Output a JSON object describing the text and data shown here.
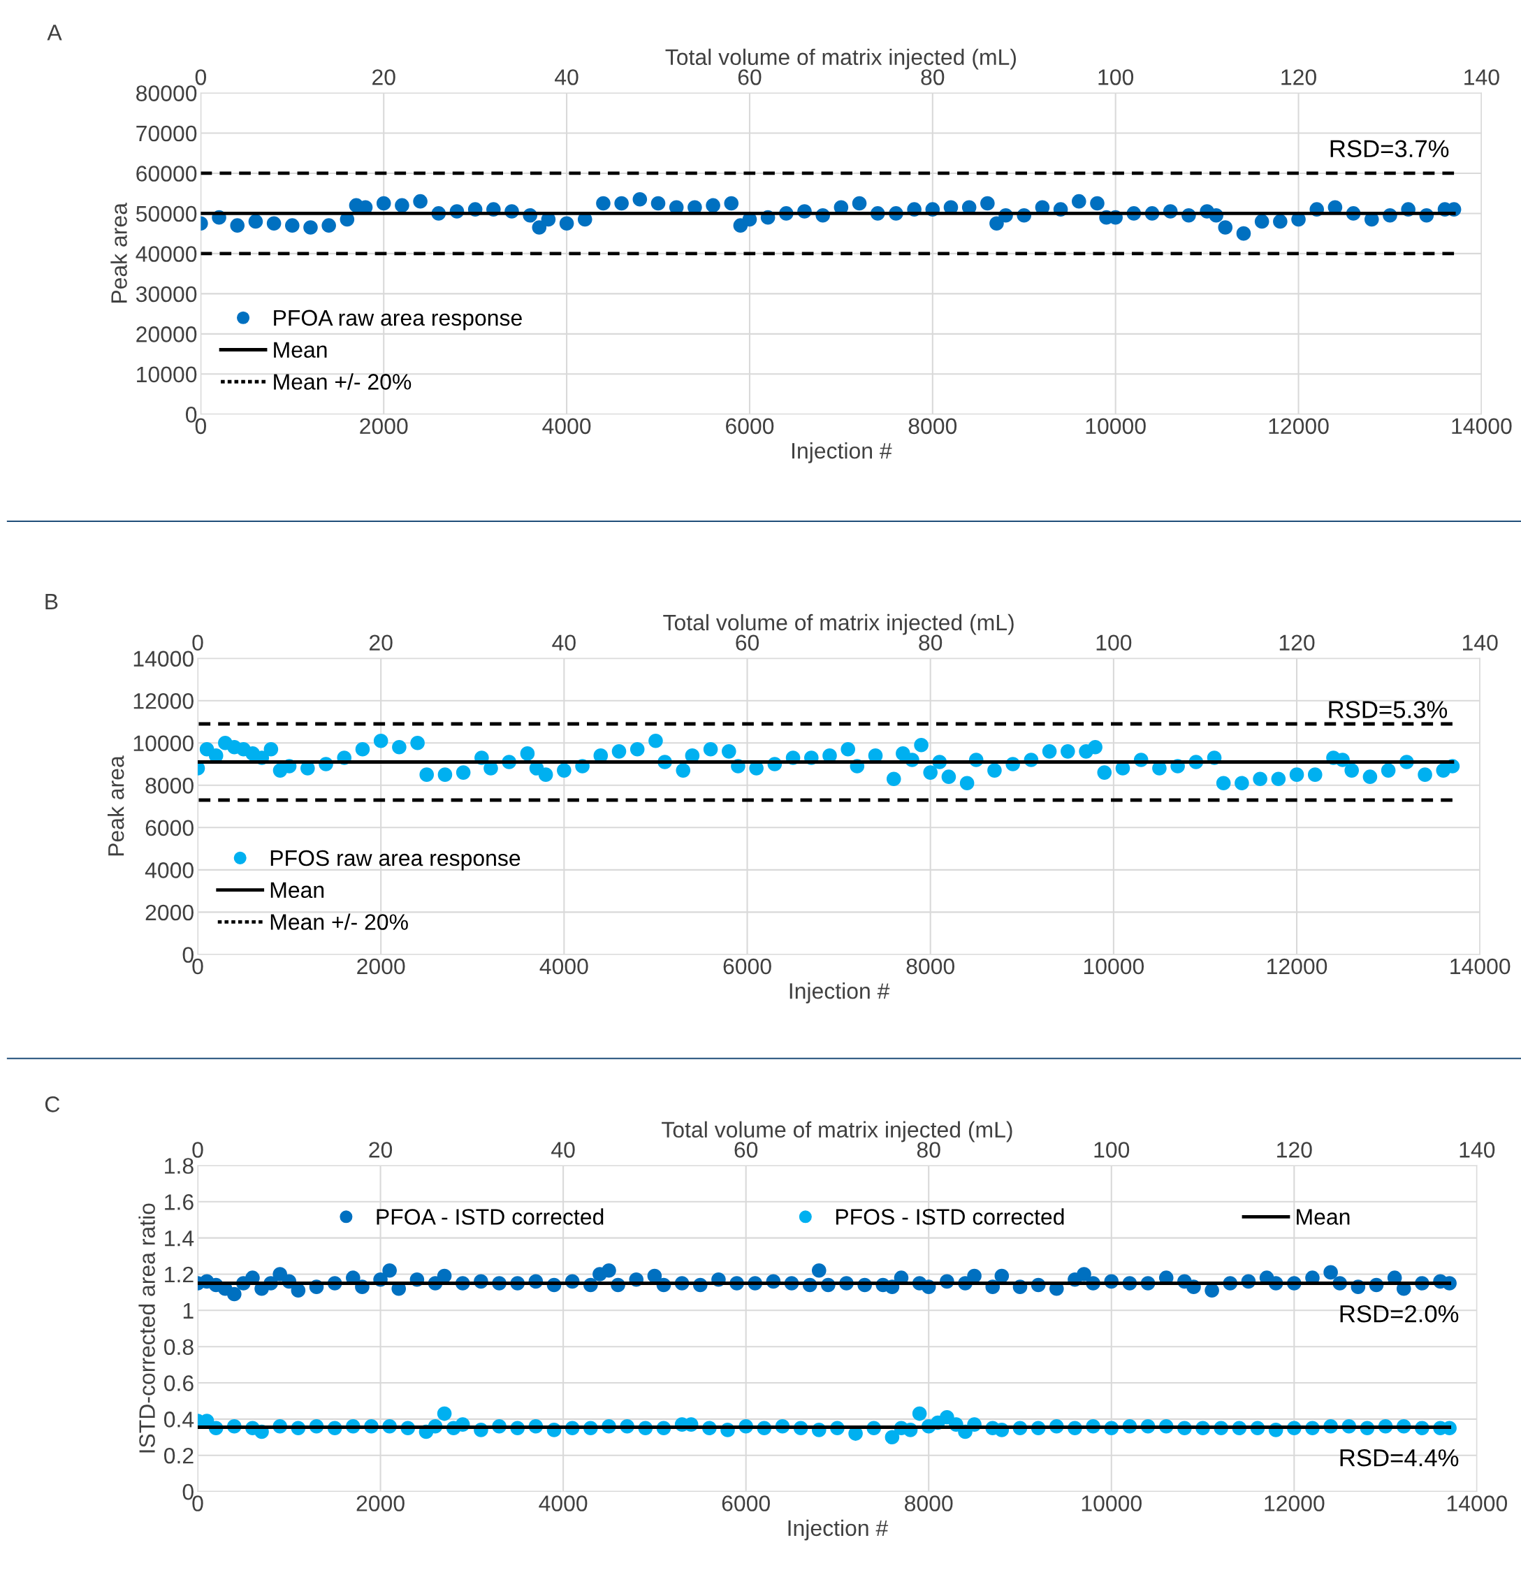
{
  "chart_data": [
    {
      "type": "scatter",
      "title": "A",
      "xlabel": "Injection #",
      "ylabel": "Peak area",
      "x2label": "Total volume of matrix injected (mL)",
      "xlim": [
        0,
        14000
      ],
      "xticks": [
        0,
        2000,
        4000,
        6000,
        8000,
        10000,
        12000,
        14000
      ],
      "ylim": [
        0,
        80000
      ],
      "yticks": [
        0,
        10000,
        20000,
        30000,
        40000,
        50000,
        60000,
        70000,
        80000
      ],
      "x2lim": [
        0,
        140
      ],
      "x2ticks": [
        0,
        20,
        40,
        60,
        80,
        100,
        120,
        140
      ],
      "grid": true,
      "legend": "bottom left",
      "annotations": [
        "RSD=3.7%"
      ],
      "series": [
        {
          "name": "PFOA raw area response",
          "marker": "circle",
          "color": "#0070c0",
          "x": [
            0,
            200,
            400,
            600,
            800,
            1000,
            1200,
            1400,
            1600,
            1700,
            1800,
            2000,
            2200,
            2400,
            2600,
            2800,
            3000,
            3200,
            3400,
            3600,
            3700,
            3800,
            4000,
            4200,
            4400,
            4600,
            4800,
            5000,
            5200,
            5400,
            5600,
            5800,
            5900,
            6000,
            6200,
            6400,
            6600,
            6800,
            7000,
            7200,
            7400,
            7600,
            7800,
            8000,
            8200,
            8400,
            8600,
            8700,
            8800,
            9000,
            9200,
            9400,
            9600,
            9800,
            9900,
            10000,
            10200,
            10400,
            10600,
            10800,
            11000,
            11100,
            11200,
            11400,
            11600,
            11800,
            12000,
            12200,
            12400,
            12600,
            12800,
            13000,
            13200,
            13400,
            13600,
            13700
          ],
          "values": [
            47500,
            49000,
            47000,
            48000,
            47500,
            47000,
            46500,
            47000,
            48500,
            52000,
            51500,
            52500,
            52000,
            53000,
            50000,
            50500,
            51000,
            51000,
            50500,
            49500,
            46500,
            48500,
            47500,
            48500,
            52500,
            52500,
            53500,
            52500,
            51500,
            51500,
            52000,
            52500,
            47000,
            48500,
            49000,
            50000,
            50500,
            49500,
            51500,
            52500,
            50000,
            50000,
            51000,
            51000,
            51500,
            51500,
            52500,
            47500,
            49500,
            49500,
            51500,
            51000,
            53000,
            52500,
            49000,
            49000,
            50000,
            50000,
            50500,
            49500,
            50500,
            49500,
            46500,
            45000,
            48000,
            48000,
            48500,
            51000,
            51500,
            50000,
            48500,
            49500,
            51000,
            49500,
            51000,
            51000
          ]
        },
        {
          "name": "Mean",
          "type": "line",
          "line_style": "solid",
          "color": "#000000",
          "x": [
            0,
            13700
          ],
          "values": [
            50000,
            50000
          ]
        },
        {
          "name": "Mean +/- 20%",
          "type": "line",
          "line_style": "dashed",
          "color": "#000000",
          "x": [
            0,
            13700
          ],
          "values": [
            60000,
            60000
          ]
        },
        {
          "type": "line",
          "line_style": "dashed",
          "color": "#000000",
          "x": [
            0,
            13700
          ],
          "values": [
            40000,
            40000
          ]
        }
      ]
    },
    {
      "type": "scatter",
      "title": "B",
      "xlabel": "Injection #",
      "ylabel": "Peak area",
      "x2label": "Total volume of matrix injected (mL)",
      "xlim": [
        0,
        14000
      ],
      "xticks": [
        0,
        2000,
        4000,
        6000,
        8000,
        10000,
        12000,
        14000
      ],
      "ylim": [
        0,
        14000
      ],
      "yticks": [
        0,
        2000,
        4000,
        6000,
        8000,
        10000,
        12000,
        14000
      ],
      "x2lim": [
        0,
        140
      ],
      "x2ticks": [
        0,
        20,
        40,
        60,
        80,
        100,
        120,
        140
      ],
      "grid": true,
      "legend": "bottom left",
      "annotations": [
        "RSD=5.3%"
      ],
      "series": [
        {
          "name": "PFOS raw area response",
          "marker": "circle",
          "color": "#00b0f0",
          "x": [
            0,
            100,
            200,
            300,
            400,
            500,
            600,
            700,
            800,
            900,
            1000,
            1200,
            1400,
            1600,
            1800,
            2000,
            2200,
            2400,
            2500,
            2700,
            2900,
            3100,
            3200,
            3400,
            3600,
            3700,
            3800,
            4000,
            4200,
            4400,
            4600,
            4800,
            5000,
            5100,
            5300,
            5400,
            5600,
            5800,
            5900,
            6100,
            6300,
            6500,
            6700,
            6900,
            7100,
            7200,
            7400,
            7600,
            7700,
            7800,
            7900,
            8000,
            8100,
            8200,
            8400,
            8500,
            8700,
            8900,
            9100,
            9300,
            9500,
            9700,
            9800,
            9900,
            10100,
            10300,
            10500,
            10700,
            10900,
            11100,
            11200,
            11400,
            11600,
            11800,
            12000,
            12200,
            12400,
            12500,
            12600,
            12800,
            13000,
            13200,
            13400,
            13600,
            13700
          ],
          "values": [
            8800,
            9700,
            9400,
            10000,
            9800,
            9700,
            9500,
            9300,
            9700,
            8700,
            8900,
            8800,
            9000,
            9300,
            9700,
            10100,
            9800,
            10000,
            8500,
            8500,
            8600,
            9300,
            8800,
            9100,
            9500,
            8800,
            8500,
            8700,
            8900,
            9400,
            9600,
            9700,
            10100,
            9100,
            8700,
            9400,
            9700,
            9600,
            8900,
            8800,
            9000,
            9300,
            9300,
            9400,
            9700,
            8900,
            9400,
            8300,
            9500,
            9200,
            9900,
            8600,
            9100,
            8400,
            8100,
            9200,
            8700,
            9000,
            9200,
            9600,
            9600,
            9600,
            9800,
            8600,
            8800,
            9200,
            8800,
            8900,
            9100,
            9300,
            8100,
            8100,
            8300,
            8300,
            8500,
            8500,
            9300,
            9200,
            8700,
            8400,
            8700,
            9100,
            8500,
            8700,
            8900
          ]
        },
        {
          "name": "Mean",
          "type": "line",
          "line_style": "solid",
          "color": "#000000",
          "x": [
            0,
            13700
          ],
          "values": [
            9100,
            9100
          ]
        },
        {
          "name": "Mean +/- 20%",
          "type": "line",
          "line_style": "dashed",
          "color": "#000000",
          "x": [
            0,
            13700
          ],
          "values": [
            10900,
            10900
          ]
        },
        {
          "type": "line",
          "line_style": "dashed",
          "color": "#000000",
          "x": [
            0,
            13700
          ],
          "values": [
            7300,
            7300
          ]
        }
      ]
    },
    {
      "type": "scatter",
      "title": "C",
      "xlabel": "Injection #",
      "ylabel": "ISTD-corrected area ratio",
      "x2label": "Total volume of matrix injected (mL)",
      "xlim": [
        0,
        14000
      ],
      "xticks": [
        0,
        2000,
        4000,
        6000,
        8000,
        10000,
        12000,
        14000
      ],
      "ylim": [
        0,
        1.8
      ],
      "yticks": [
        0,
        0.2,
        0.4,
        0.6,
        0.8,
        1,
        1.2,
        1.4,
        1.6,
        1.8
      ],
      "x2lim": [
        0,
        140
      ],
      "x2ticks": [
        0,
        20,
        40,
        60,
        80,
        100,
        120,
        140
      ],
      "grid": true,
      "legend": "top",
      "annotations": [
        {
          "text": "RSD=2.0%",
          "x": 13700,
          "y": 1.15
        },
        {
          "text": "RSD=4.4%",
          "x": 13700,
          "y": 0.355
        }
      ],
      "series": [
        {
          "name": "PFOA - ISTD corrected",
          "marker": "circle",
          "color": "#0070c0",
          "x": [
            0,
            100,
            200,
            300,
            400,
            500,
            600,
            700,
            800,
            900,
            1000,
            1100,
            1300,
            1500,
            1700,
            1800,
            2000,
            2100,
            2200,
            2400,
            2600,
            2700,
            2900,
            3100,
            3300,
            3500,
            3700,
            3900,
            4100,
            4300,
            4400,
            4500,
            4600,
            4800,
            5000,
            5100,
            5300,
            5500,
            5700,
            5900,
            6100,
            6300,
            6500,
            6700,
            6800,
            6900,
            7100,
            7300,
            7500,
            7600,
            7700,
            7900,
            8000,
            8200,
            8400,
            8500,
            8700,
            8800,
            9000,
            9200,
            9400,
            9600,
            9700,
            9800,
            10000,
            10200,
            10400,
            10600,
            10800,
            10900,
            11100,
            11300,
            11500,
            11700,
            11800,
            12000,
            12200,
            12400,
            12500,
            12700,
            12900,
            13100,
            13200,
            13400,
            13600,
            13700
          ],
          "values": [
            1.15,
            1.16,
            1.14,
            1.12,
            1.09,
            1.15,
            1.18,
            1.12,
            1.15,
            1.2,
            1.16,
            1.11,
            1.13,
            1.15,
            1.18,
            1.13,
            1.17,
            1.22,
            1.12,
            1.17,
            1.15,
            1.19,
            1.15,
            1.16,
            1.15,
            1.15,
            1.16,
            1.14,
            1.16,
            1.14,
            1.2,
            1.22,
            1.14,
            1.17,
            1.19,
            1.14,
            1.15,
            1.14,
            1.17,
            1.15,
            1.15,
            1.16,
            1.15,
            1.14,
            1.22,
            1.14,
            1.15,
            1.14,
            1.14,
            1.13,
            1.18,
            1.15,
            1.13,
            1.16,
            1.15,
            1.19,
            1.13,
            1.19,
            1.13,
            1.14,
            1.12,
            1.17,
            1.2,
            1.15,
            1.16,
            1.15,
            1.15,
            1.18,
            1.16,
            1.13,
            1.11,
            1.15,
            1.16,
            1.18,
            1.15,
            1.15,
            1.18,
            1.21,
            1.15,
            1.13,
            1.14,
            1.18,
            1.12,
            1.15,
            1.16,
            1.15
          ]
        },
        {
          "name": "PFOS - ISTD corrected",
          "marker": "circle",
          "color": "#00b0f0",
          "x": [
            0,
            100,
            200,
            400,
            600,
            700,
            900,
            1100,
            1300,
            1500,
            1700,
            1900,
            2100,
            2300,
            2500,
            2600,
            2700,
            2800,
            2900,
            3100,
            3300,
            3500,
            3700,
            3900,
            4100,
            4300,
            4500,
            4700,
            4900,
            5100,
            5300,
            5400,
            5600,
            5800,
            6000,
            6200,
            6400,
            6600,
            6800,
            7000,
            7200,
            7400,
            7600,
            7700,
            7800,
            7900,
            8000,
            8100,
            8200,
            8300,
            8400,
            8500,
            8700,
            8800,
            9000,
            9200,
            9400,
            9600,
            9800,
            10000,
            10200,
            10400,
            10600,
            10800,
            11000,
            11200,
            11400,
            11600,
            11800,
            12000,
            12200,
            12400,
            12600,
            12800,
            13000,
            13200,
            13400,
            13600,
            13700
          ],
          "values": [
            0.39,
            0.39,
            0.35,
            0.36,
            0.35,
            0.33,
            0.36,
            0.35,
            0.36,
            0.35,
            0.36,
            0.36,
            0.36,
            0.35,
            0.33,
            0.36,
            0.43,
            0.35,
            0.37,
            0.34,
            0.36,
            0.35,
            0.36,
            0.34,
            0.35,
            0.35,
            0.36,
            0.36,
            0.35,
            0.35,
            0.37,
            0.37,
            0.35,
            0.34,
            0.36,
            0.35,
            0.36,
            0.35,
            0.34,
            0.35,
            0.32,
            0.35,
            0.3,
            0.35,
            0.34,
            0.43,
            0.36,
            0.38,
            0.41,
            0.37,
            0.33,
            0.37,
            0.35,
            0.34,
            0.35,
            0.35,
            0.36,
            0.35,
            0.36,
            0.35,
            0.36,
            0.36,
            0.36,
            0.35,
            0.35,
            0.35,
            0.35,
            0.35,
            0.34,
            0.35,
            0.35,
            0.36,
            0.36,
            0.35,
            0.36,
            0.36,
            0.35,
            0.35,
            0.35
          ]
        },
        {
          "name": "Mean",
          "type": "line",
          "line_style": "solid",
          "color": "#000000",
          "x": [
            0,
            13700
          ],
          "values": [
            1.15,
            1.15
          ]
        },
        {
          "type": "line",
          "line_style": "solid",
          "color": "#000000",
          "x": [
            0,
            13700
          ],
          "values": [
            0.355,
            0.355
          ]
        }
      ]
    }
  ]
}
